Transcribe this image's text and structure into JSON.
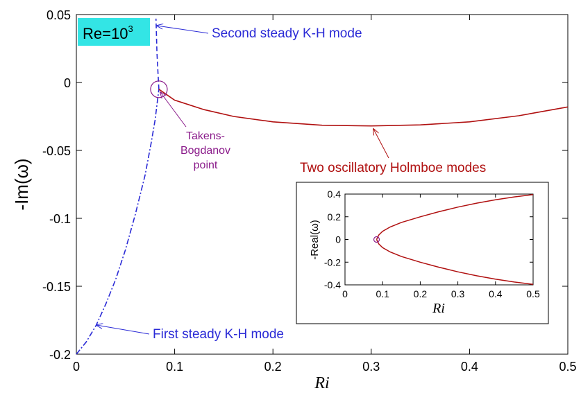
{
  "chart_data": [
    {
      "type": "line",
      "ylabel": "-Im(ω)",
      "xlabel": "Ri",
      "xlim": [
        0,
        0.5
      ],
      "ylim": [
        -0.2,
        0.05
      ],
      "x_ticks": [
        "0",
        "0.1",
        "0.2",
        "0.3",
        "0.4",
        "0.5"
      ],
      "y_ticks": [
        "0.05",
        "0",
        "-0.05",
        "-0.1",
        "-0.15",
        "-0.2"
      ],
      "badge": {
        "base": "Re=10",
        "exponent": "3"
      },
      "colors": {
        "steady": "#2a2ad6",
        "holmboe": "#b01010",
        "tb": "#8a1a8a",
        "badge_bg": "#33e5e5"
      },
      "series": [
        {
          "style": "dash-dot",
          "x": [
            0.0,
            0.01,
            0.02,
            0.03,
            0.04,
            0.05,
            0.06,
            0.07,
            0.076,
            0.08,
            0.084
          ],
          "y": [
            -0.2,
            -0.191,
            -0.179,
            -0.163,
            -0.145,
            -0.123,
            -0.097,
            -0.068,
            -0.045,
            -0.028,
            -0.005
          ]
        },
        {
          "style": "dashed",
          "x": [
            0.084,
            0.083,
            0.082,
            0.0815,
            0.081
          ],
          "y": [
            -0.005,
            0.008,
            0.022,
            0.035,
            0.047
          ]
        },
        {
          "style": "solid",
          "x": [
            0.084,
            0.1,
            0.13,
            0.16,
            0.2,
            0.25,
            0.3,
            0.35,
            0.4,
            0.45,
            0.5
          ],
          "y": [
            -0.005,
            -0.013,
            -0.02,
            -0.025,
            -0.029,
            -0.0315,
            -0.032,
            -0.0312,
            -0.029,
            -0.0245,
            -0.018
          ]
        }
      ],
      "annotations": [
        {
          "text": "Second steady K-H mode",
          "point": [
            0.082,
            0.041
          ],
          "color": "steady"
        },
        {
          "lines": [
            "Takens-",
            "Bogdanov",
            "point"
          ],
          "point": [
            0.084,
            -0.005
          ],
          "color": "tb"
        },
        {
          "text": "Two oscillatory Holmboe modes",
          "point": [
            0.305,
            -0.032
          ],
          "color": "holmboe"
        },
        {
          "text": "First steady K-H mode",
          "point": [
            0.02,
            -0.177
          ],
          "color": "steady"
        }
      ],
      "marker": {
        "shape": "circle",
        "point": [
          0.084,
          -0.005
        ]
      }
    },
    {
      "type": "line",
      "ylabel": "-Real(ω)",
      "xlabel": "Ri",
      "xlim": [
        0,
        0.5
      ],
      "ylim": [
        -0.4,
        0.4
      ],
      "x_ticks": [
        "0",
        "0.1",
        "0.2",
        "0.3",
        "0.4",
        "0.5"
      ],
      "y_ticks": [
        "0.4",
        "0.2",
        "0",
        "-0.2",
        "-0.4"
      ],
      "series": [
        {
          "style": "solid",
          "x": [
            0.084,
            0.09,
            0.1,
            0.12,
            0.15,
            0.2,
            0.25,
            0.3,
            0.35,
            0.4,
            0.45,
            0.5
          ],
          "y": [
            0.0,
            0.04,
            0.072,
            0.11,
            0.15,
            0.2,
            0.245,
            0.285,
            0.32,
            0.35,
            0.375,
            0.395
          ]
        },
        {
          "style": "solid",
          "x": [
            0.084,
            0.09,
            0.1,
            0.12,
            0.15,
            0.2,
            0.25,
            0.3,
            0.35,
            0.4,
            0.45,
            0.5
          ],
          "y": [
            0.0,
            -0.04,
            -0.072,
            -0.11,
            -0.15,
            -0.2,
            -0.245,
            -0.285,
            -0.32,
            -0.35,
            -0.375,
            -0.395
          ]
        }
      ],
      "marker": {
        "shape": "circle",
        "point": [
          0.084,
          0.0
        ]
      }
    }
  ]
}
